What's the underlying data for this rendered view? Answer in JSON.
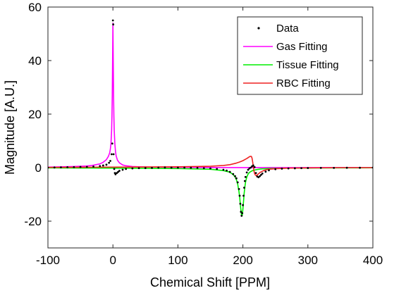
{
  "chart_data": {
    "type": "line",
    "xlabel": "Chemical Shift [PPM]",
    "ylabel": "Magnitude [A.U.]",
    "xlim": [
      -100,
      400
    ],
    "ylim": [
      -30,
      60
    ],
    "xticks": [
      -100,
      0,
      100,
      200,
      300,
      400
    ],
    "yticks": [
      -20,
      0,
      20,
      40,
      60
    ],
    "grid": false,
    "legend_position": "top-right",
    "series": [
      {
        "name": "Data",
        "style": "points",
        "color": "#000000",
        "x": [
          -100,
          -90,
          -80,
          -70,
          -60,
          -50,
          -40,
          -30,
          -20,
          -15,
          -10,
          -6,
          -4,
          -2,
          -1,
          0,
          0.5,
          1,
          2,
          3,
          4,
          6,
          8,
          10,
          15,
          20,
          30,
          40,
          50,
          60,
          70,
          80,
          90,
          100,
          110,
          120,
          130,
          140,
          150,
          160,
          170,
          175,
          180,
          185,
          188,
          190,
          192,
          194,
          195,
          196,
          197,
          198,
          199,
          200,
          201,
          202,
          203,
          204,
          206,
          208,
          210,
          212,
          214,
          216,
          218,
          220,
          222,
          224,
          226,
          228,
          230,
          235,
          240,
          250,
          260,
          270,
          280,
          290,
          300,
          320,
          340,
          360,
          380,
          400
        ],
        "y": [
          0.0,
          0.05,
          0.1,
          0.15,
          0.2,
          0.25,
          0.3,
          0.4,
          0.6,
          0.8,
          1.1,
          1.8,
          2.5,
          5.0,
          9.0,
          55.0,
          53.5,
          5.0,
          -0.5,
          -2.0,
          -2.5,
          -2.0,
          -1.6,
          -1.2,
          -0.8,
          -0.5,
          -0.3,
          -0.2,
          -0.15,
          -0.1,
          0.0,
          0.05,
          0.0,
          0.0,
          0.0,
          -0.05,
          -0.1,
          -0.2,
          -0.3,
          -0.5,
          -0.8,
          -1.1,
          -1.6,
          -2.4,
          -3.2,
          -4.0,
          -5.5,
          -8.0,
          -10.5,
          -13.5,
          -16.5,
          -18.0,
          -17.0,
          -14.0,
          -10.5,
          -7.5,
          -5.0,
          -3.5,
          -1.8,
          -0.8,
          -0.3,
          0.0,
          0.5,
          0.8,
          0.2,
          -2.0,
          -3.3,
          -3.6,
          -3.2,
          -2.7,
          -2.2,
          -1.5,
          -1.0,
          -0.6,
          -0.4,
          -0.3,
          -0.25,
          -0.2,
          -0.15,
          -0.1,
          -0.1,
          -0.05,
          -0.05,
          0.0
        ]
      },
      {
        "name": "Gas Fitting",
        "style": "line",
        "color": "#ff00ff",
        "x": [
          -100,
          -60,
          -40,
          -30,
          -20,
          -15,
          -10,
          -7,
          -5,
          -4,
          -3,
          -2,
          -1.5,
          -1,
          -0.5,
          0,
          0.5,
          1,
          1.5,
          2,
          3,
          4,
          5,
          7,
          10,
          15,
          20,
          30,
          40,
          60,
          100,
          150,
          200,
          250,
          300,
          350,
          400
        ],
        "y": [
          0.2,
          0.4,
          0.6,
          0.9,
          1.4,
          2.0,
          3.0,
          4.2,
          5.5,
          6.8,
          9.0,
          14.0,
          19.0,
          27.0,
          40.0,
          54.0,
          40.0,
          27.0,
          19.0,
          14.0,
          8.8,
          6.0,
          4.3,
          2.8,
          1.8,
          1.0,
          0.7,
          0.4,
          0.3,
          0.2,
          0.1,
          0.05,
          0.03,
          0.02,
          0.02,
          0.01,
          0.0
        ]
      },
      {
        "name": "Tissue Fitting",
        "style": "line",
        "color": "#00ee00",
        "x": [
          -100,
          -50,
          0,
          50,
          100,
          150,
          170,
          180,
          185,
          188,
          190,
          192,
          194,
          195,
          196,
          197,
          198,
          199,
          200,
          201,
          202,
          203,
          204,
          206,
          208,
          210,
          214,
          218,
          222,
          226,
          230,
          240,
          250,
          270,
          300,
          350,
          400
        ],
        "y": [
          -0.1,
          -0.15,
          -0.2,
          -0.25,
          -0.35,
          -0.6,
          -1.1,
          -1.7,
          -2.6,
          -3.5,
          -4.5,
          -6.2,
          -9.0,
          -11.0,
          -13.5,
          -16.0,
          -18.0,
          -17.8,
          -15.5,
          -12.5,
          -9.5,
          -7.3,
          -5.5,
          -3.5,
          -2.4,
          -1.8,
          -1.2,
          -0.9,
          -0.7,
          -0.55,
          -0.45,
          -0.35,
          -0.3,
          -0.2,
          -0.15,
          -0.1,
          -0.05
        ]
      },
      {
        "name": "RBC Fitting",
        "style": "line",
        "color": "#ee2222",
        "x": [
          -100,
          -50,
          0,
          50,
          100,
          150,
          170,
          180,
          190,
          195,
          200,
          203,
          206,
          209,
          211,
          213,
          214,
          215,
          216,
          217,
          218,
          219,
          220,
          221,
          222,
          224,
          226,
          228,
          232,
          236,
          240,
          250,
          270,
          300,
          350,
          400
        ],
        "y": [
          0.1,
          0.15,
          0.2,
          0.25,
          0.3,
          0.5,
          0.8,
          1.1,
          1.7,
          2.1,
          2.6,
          3.0,
          3.4,
          3.9,
          4.2,
          4.2,
          3.6,
          2.2,
          0.4,
          -1.2,
          -2.2,
          -2.7,
          -2.9,
          -2.9,
          -2.7,
          -2.3,
          -1.9,
          -1.6,
          -1.1,
          -0.8,
          -0.6,
          -0.4,
          -0.2,
          -0.1,
          0.0,
          0.0
        ]
      }
    ]
  }
}
